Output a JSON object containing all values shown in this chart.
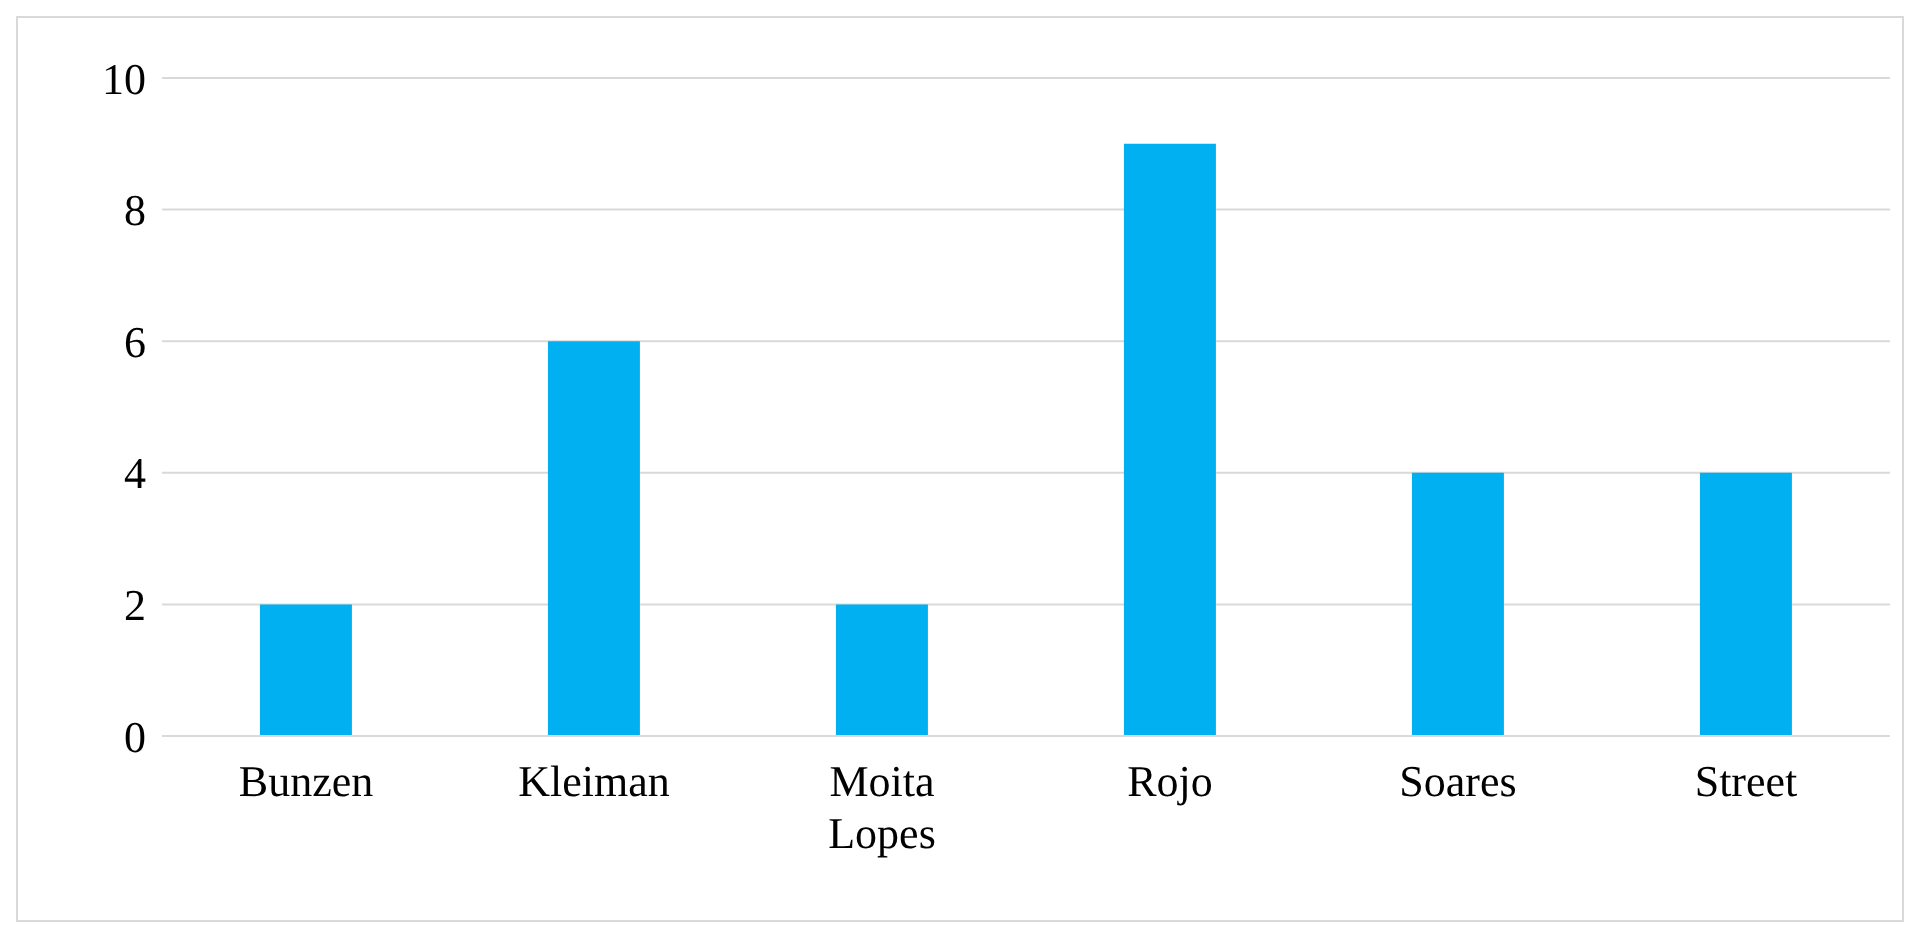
{
  "chart_data": {
    "type": "bar",
    "categories": [
      "Bunzen",
      "Kleiman",
      "Moita Lopes",
      "Rojo",
      "Soares",
      "Street"
    ],
    "values": [
      2,
      6,
      2,
      9,
      4,
      4
    ],
    "color": "#00b0f0",
    "ylim": [
      0,
      10
    ],
    "yticks": [
      0,
      2,
      4,
      6,
      8,
      10
    ],
    "grid": "y",
    "legend": false
  }
}
